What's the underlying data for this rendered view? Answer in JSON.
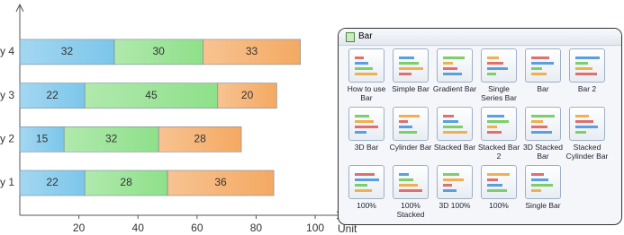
{
  "chart_data": {
    "type": "bar",
    "orientation": "horizontal",
    "stacked": true,
    "categories": [
      "y 1",
      "y 2",
      "y 3",
      "y 4"
    ],
    "series": [
      {
        "color": "#7cc6ea",
        "values": [
          22,
          15,
          22,
          32
        ]
      },
      {
        "color": "#8ee08a",
        "values": [
          28,
          32,
          45,
          30
        ]
      },
      {
        "color": "#f4a962",
        "values": [
          36,
          28,
          20,
          33
        ]
      }
    ],
    "xlim": [
      0,
      107
    ],
    "xticks": [
      20,
      40,
      60,
      80,
      100
    ],
    "x_label": "Unit"
  },
  "panel": {
    "title": "Bar",
    "items": [
      "How to use Bar",
      "Simple Bar",
      "Gradient Bar",
      "Single Series Bar",
      "Bar",
      "Bar 2",
      "3D Bar",
      "Cylinder Bar",
      "Stacked Bar",
      "Stacked Bar 2",
      "3D Stacked Bar",
      "Stacked Cylinder Bar",
      "100%",
      "100% Stacked",
      "3D 100%",
      "100%",
      "Single Bar"
    ]
  }
}
